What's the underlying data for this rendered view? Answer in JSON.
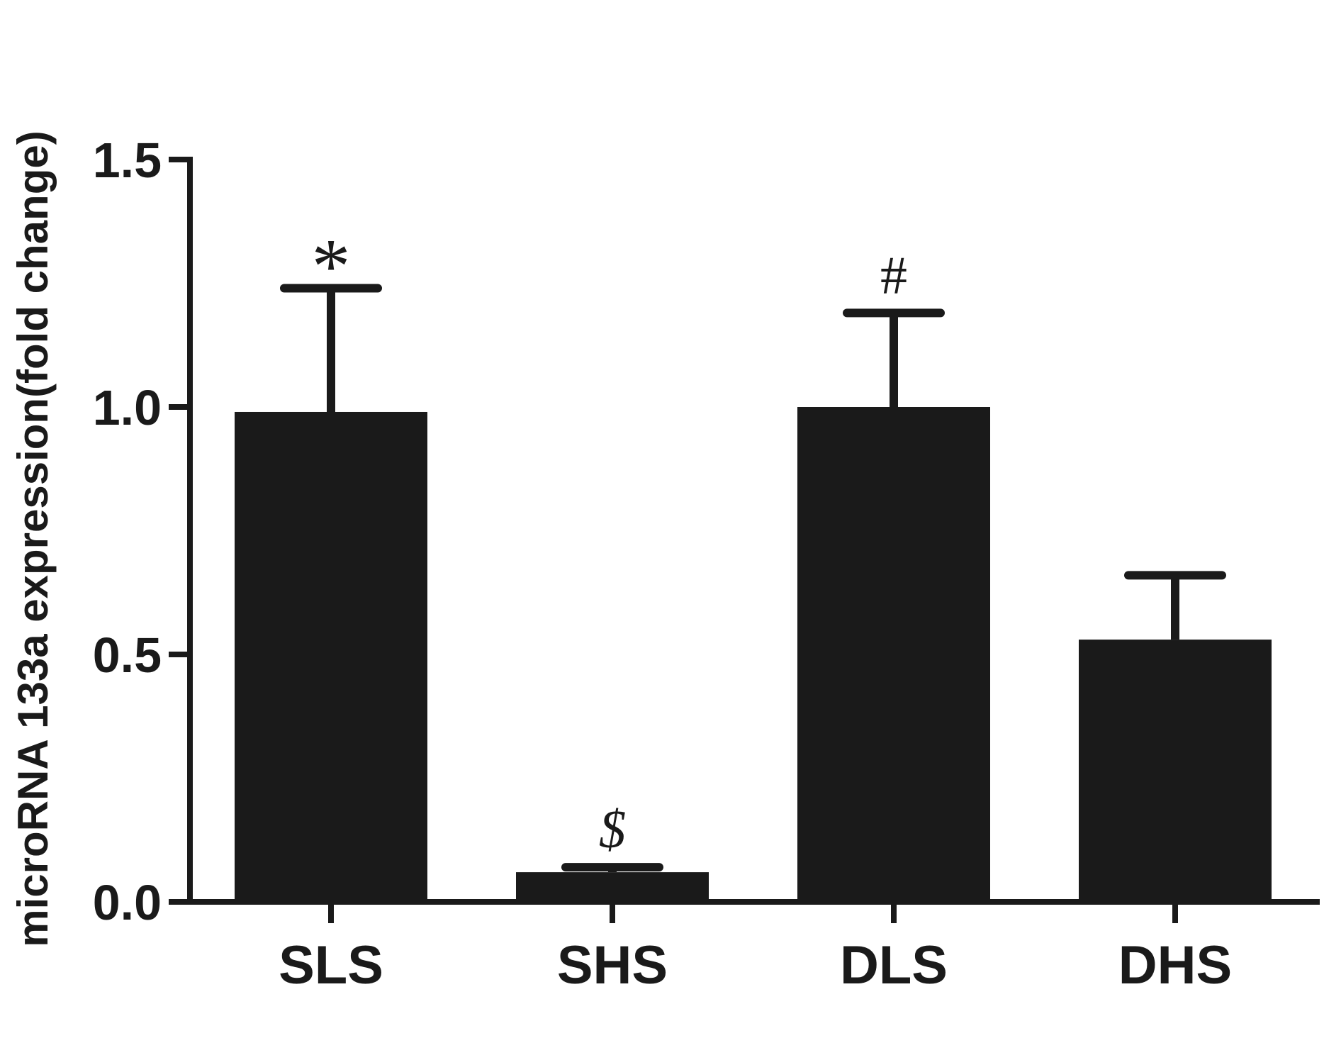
{
  "chart_data": {
    "type": "bar",
    "categories": [
      "SLS",
      "SHS",
      "DLS",
      "DHS"
    ],
    "values": [
      0.99,
      0.06,
      1.0,
      0.53
    ],
    "error_upper": [
      1.24,
      0.07,
      1.19,
      0.66
    ],
    "significance": [
      "*",
      "$",
      "#",
      ""
    ],
    "ylabel": "microRNA 133a expression(fold change)",
    "xlabel": "",
    "ylim": [
      0,
      1.5
    ],
    "yticks": [
      "0.0",
      "0.5",
      "1.0",
      "1.5"
    ],
    "ytick_values": [
      0,
      0.5,
      1.0,
      1.5
    ],
    "grid": false,
    "colors": {
      "bar": "#1a1a1a",
      "axis": "#1a1a1a"
    }
  }
}
